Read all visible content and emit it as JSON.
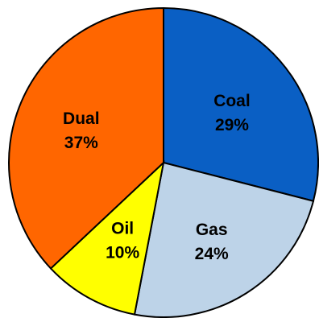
{
  "chart_data": {
    "type": "pie",
    "start_angle_deg": 0,
    "direction": "clockwise",
    "slices": [
      {
        "label": "Coal",
        "value": 29,
        "value_label": "29%",
        "color": "#0A5FC4",
        "label_color": "#000000"
      },
      {
        "label": "Gas",
        "value": 24,
        "value_label": "24%",
        "color": "#BDD3E8",
        "label_color": "#000000"
      },
      {
        "label": "Oil",
        "value": 10,
        "value_label": "10%",
        "color": "#FFFF00",
        "label_color": "#000000"
      },
      {
        "label": "Dual",
        "value": 37,
        "value_label": "37%",
        "color": "#FF6600",
        "label_color": "#000000"
      }
    ]
  }
}
